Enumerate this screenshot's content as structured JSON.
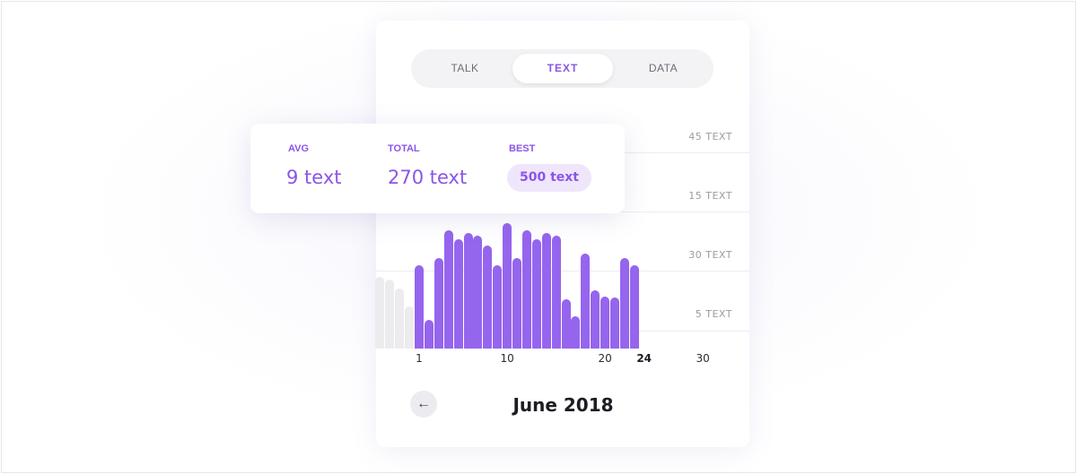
{
  "tabs": [
    {
      "label": "TALK",
      "active": false
    },
    {
      "label": "TEXT",
      "active": true
    },
    {
      "label": "DATA",
      "active": false
    }
  ],
  "stats": {
    "avg_label": "AVG",
    "avg_value": "9 text",
    "total_label": "TOTAL",
    "total_value": "270 text",
    "best_label": "BEST",
    "best_value": "500 text"
  },
  "nav": {
    "back_icon": "arrow-left-icon",
    "month": "June 2018"
  },
  "colors": {
    "accent": "#8b55e6",
    "bar": "#9565ee",
    "bar_inactive": "#ececee"
  },
  "chart_data": {
    "type": "bar",
    "y_tick_labels": [
      "45 TEXT",
      "15 TEXT",
      "30 TEXT",
      "5 TEXT"
    ],
    "x_tick_labels": [
      {
        "day": 1,
        "label": "1"
      },
      {
        "day": 10,
        "label": "10"
      },
      {
        "day": 20,
        "label": "20"
      },
      {
        "day": 24,
        "label": "24",
        "highlight": true
      },
      {
        "day": 30,
        "label": "30"
      }
    ],
    "previous_month_values": [
      80,
      77,
      67,
      47
    ],
    "values": [
      93,
      32,
      101,
      132,
      122,
      129,
      126,
      115,
      93,
      140,
      101,
      132,
      122,
      129,
      126,
      55,
      36,
      106,
      65,
      58,
      57,
      101,
      93
    ],
    "value_unit": "relative bar height (0-140)",
    "grid": true
  }
}
